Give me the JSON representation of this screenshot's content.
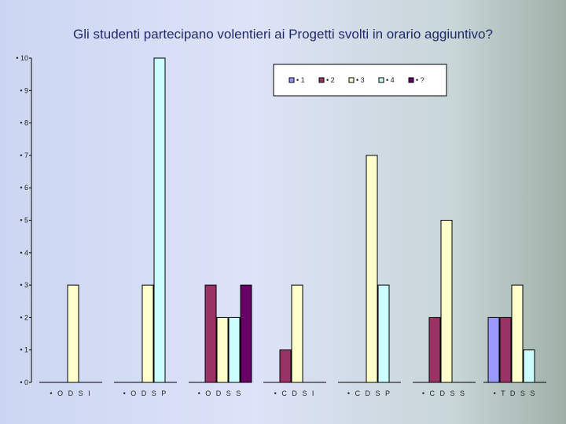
{
  "chart_data": {
    "type": "bar",
    "title": "Gli studenti partecipano volentieri ai Progetti svolti in orario aggiuntivo?",
    "categories": [
      "• O D S I",
      "• O D S P",
      "• O D S S",
      "• C D S I",
      "• C D S P",
      "• C D S S",
      "• T D S S"
    ],
    "series": [
      {
        "name": "• 1",
        "color": "#9999ff",
        "values": [
          0,
          0,
          0,
          0,
          0,
          0,
          2
        ]
      },
      {
        "name": "• 2",
        "color": "#993366",
        "values": [
          0,
          0,
          3,
          1,
          0,
          2,
          2
        ]
      },
      {
        "name": "• 3",
        "color": "#ffffcc",
        "values": [
          3,
          3,
          2,
          3,
          7,
          5,
          3
        ]
      },
      {
        "name": "• 4",
        "color": "#ccffff",
        "values": [
          0,
          10,
          2,
          0,
          3,
          0,
          1
        ]
      },
      {
        "name": "• ?",
        "color": "#660066",
        "values": [
          0,
          0,
          3,
          0,
          0,
          0,
          0
        ]
      }
    ],
    "yticks": [
      "• 0",
      "• 1",
      "• 2",
      "• 3",
      "• 4",
      "• 5",
      "• 6",
      "• 7",
      "• 8",
      "• 9",
      "• 10"
    ],
    "ylim": [
      0,
      10
    ],
    "legend_position": "top-right",
    "grid": false
  }
}
